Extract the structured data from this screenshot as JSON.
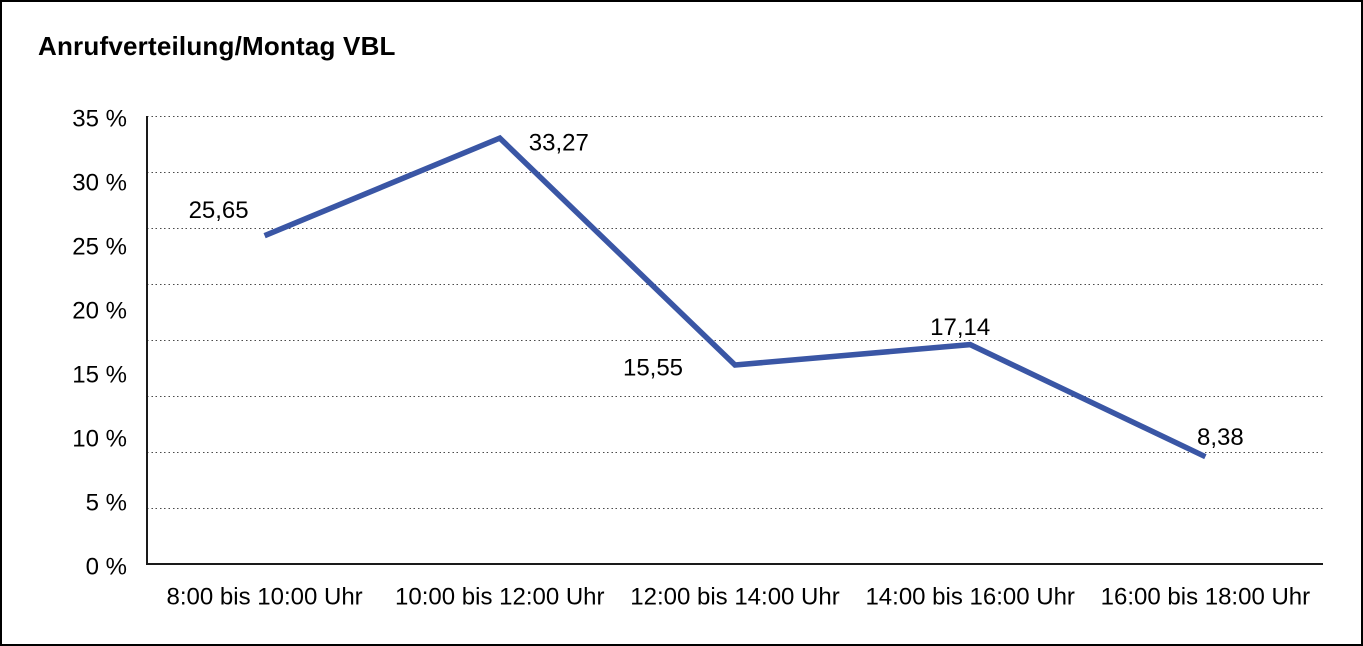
{
  "window": {
    "title": "Anrufverteilung/Montag VBL"
  },
  "colors": {
    "line": "#3A56A5",
    "grid": "#4A4A4A",
    "axis": "#1A1A1A",
    "text": "#000000",
    "background": "#FFFFFF",
    "frame_border": "#000000"
  },
  "chart_data": {
    "type": "line",
    "title": "Anrufverteilung/Montag VBL",
    "categories": [
      "8:00 bis 10:00 Uhr",
      "10:00 bis 12:00 Uhr",
      "12:00 bis 14:00 Uhr",
      "14:00 bis 16:00 Uhr",
      "16:00 bis 18:00 Uhr"
    ],
    "series": [
      {
        "name": "Anrufverteilung Montag VBL",
        "values": [
          25.65,
          33.27,
          15.55,
          17.14,
          8.38
        ],
        "point_labels": [
          "25,65",
          "33,27",
          "15,55",
          "17,14",
          "8,38"
        ],
        "color": "#3A56A5"
      }
    ],
    "xlabel": "",
    "ylabel": "",
    "y_tick_labels": [
      "0 %",
      "5 %",
      "10 %",
      "15 %",
      "20 %",
      "25 %",
      "30 %",
      "35 %"
    ],
    "ylim": [
      0,
      35
    ],
    "grid": "horizontal-dotted",
    "legend": false,
    "value_format": "percent, German comma decimals"
  }
}
